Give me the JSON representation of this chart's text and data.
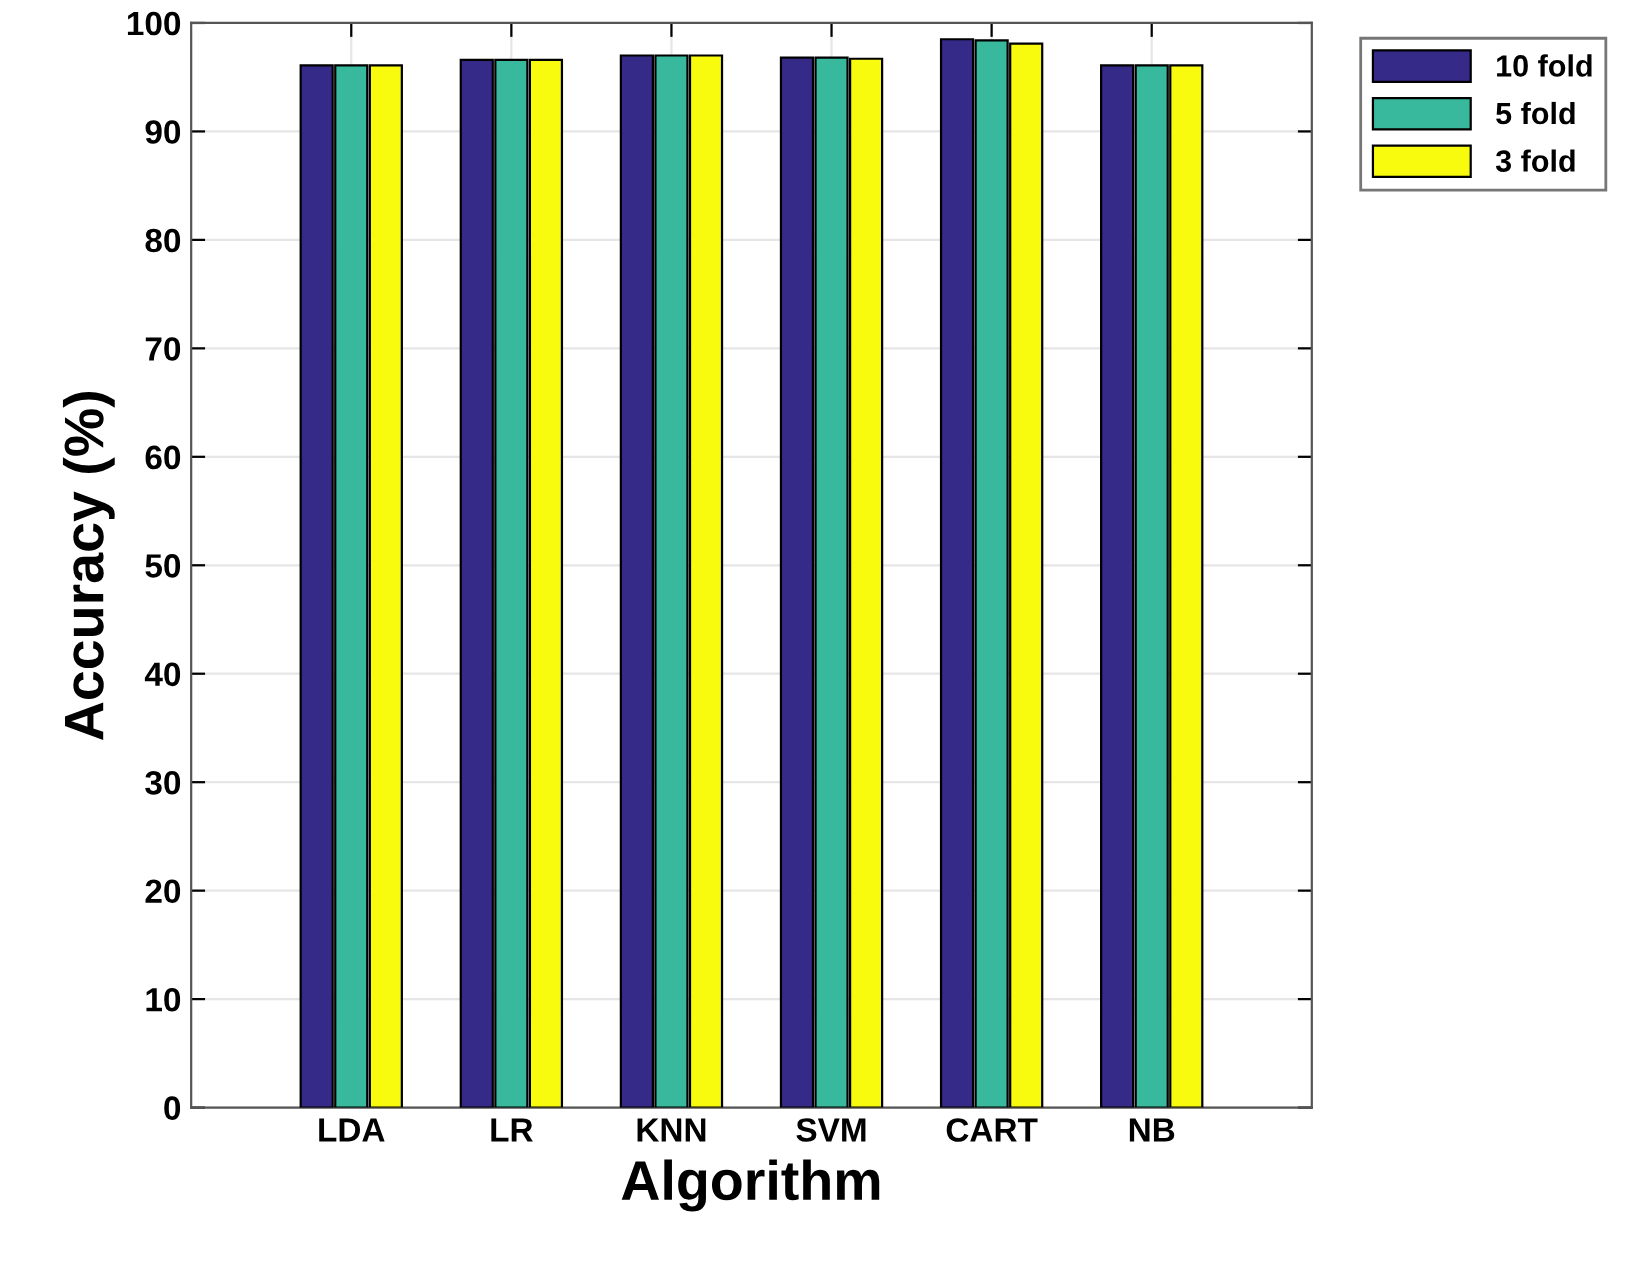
{
  "chart_data": {
    "type": "bar",
    "xlabel": "Algorithm",
    "ylabel": "Accuracy (%)",
    "categories": [
      "LDA",
      "LR",
      "KNN",
      "SVM",
      "CART",
      "NB"
    ],
    "series": [
      {
        "name": "10 fold",
        "color": "#352a87",
        "values": [
          96.1,
          96.6,
          97.0,
          96.8,
          98.5,
          96.1
        ]
      },
      {
        "name": "5 fold",
        "color": "#38b99e",
        "values": [
          96.1,
          96.6,
          97.0,
          96.8,
          98.4,
          96.1
        ]
      },
      {
        "name": "3 fold",
        "color": "#f9fb0e",
        "values": [
          96.1,
          96.6,
          97.0,
          96.7,
          98.1,
          96.1
        ]
      }
    ],
    "ylim": [
      0,
      100
    ],
    "yticks": [
      0,
      10,
      20,
      30,
      40,
      50,
      60,
      70,
      80,
      90,
      100
    ],
    "grid": true,
    "legend": "top right"
  }
}
